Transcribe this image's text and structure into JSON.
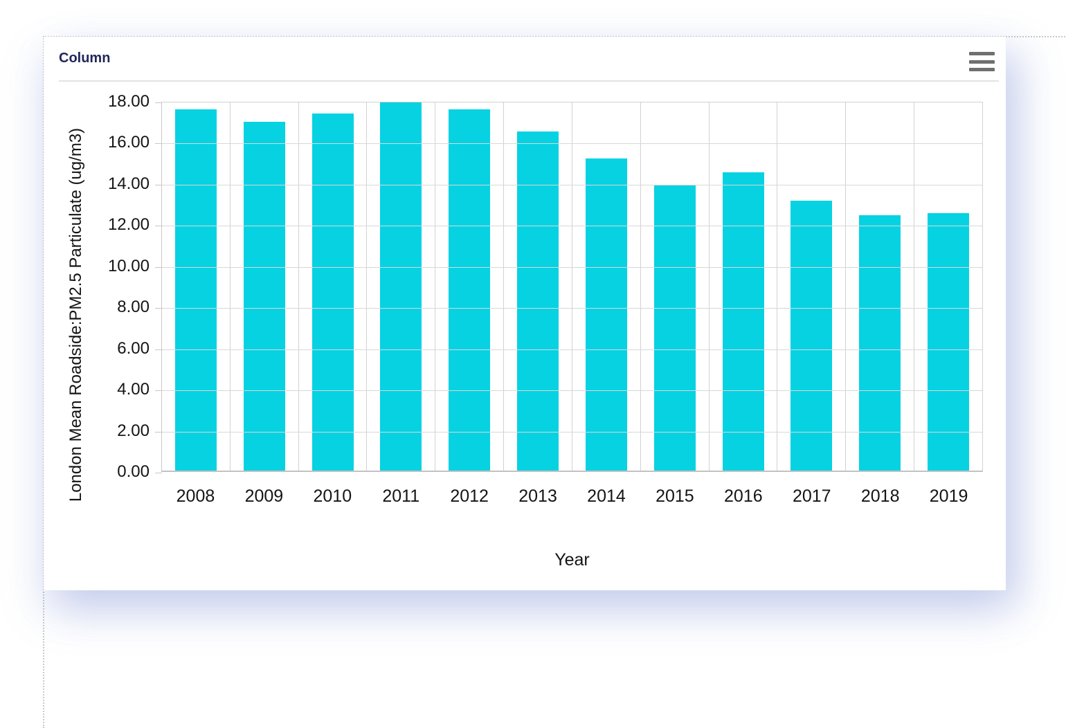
{
  "card": {
    "title": "Column",
    "menu_icon": "hamburger-menu-icon"
  },
  "chart_data": {
    "type": "bar",
    "title": "Column",
    "categories": [
      "2008",
      "2009",
      "2010",
      "2011",
      "2012",
      "2013",
      "2014",
      "2015",
      "2016",
      "2017",
      "2018",
      "2019"
    ],
    "values": [
      17.55,
      16.95,
      17.35,
      17.9,
      17.55,
      16.5,
      15.16,
      13.85,
      14.49,
      13.11,
      12.43,
      12.52
    ],
    "xlabel": "Year",
    "ylabel": "London Mean Roadside:PM2.5 Particulate (ug/m3)",
    "ylim": [
      0,
      18
    ],
    "ytick_step": 2,
    "ytick_labels": [
      "0.00",
      "2.00",
      "4.00",
      "6.00",
      "8.00",
      "10.00",
      "12.00",
      "14.00",
      "16.00",
      "18.00"
    ],
    "grid": true,
    "legend": "none",
    "bar_color": "#06d2e2"
  },
  "colors": {
    "accent_bar": "#06d2e2",
    "title_navy": "#20275a",
    "gridline": "#d8d8d8",
    "menu_icon_gray": "#6f6f6f"
  }
}
